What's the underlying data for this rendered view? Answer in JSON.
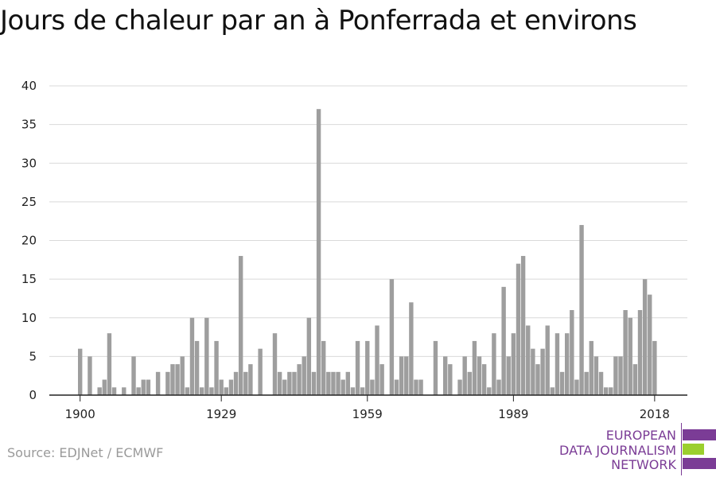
{
  "chart_data": {
    "type": "bar",
    "title": "Jours de chaleur par an à Ponferrada et environs",
    "xlabel": "",
    "ylabel": "",
    "ylim": [
      0,
      40
    ],
    "yticks": [
      0,
      5,
      10,
      15,
      20,
      25,
      30,
      35,
      40
    ],
    "xticks": [
      1900,
      1929,
      1959,
      1989,
      2018
    ],
    "grid": true,
    "bar_color": "#9e9e9e",
    "x": [
      1900,
      1901,
      1902,
      1903,
      1904,
      1905,
      1906,
      1907,
      1908,
      1909,
      1910,
      1911,
      1912,
      1913,
      1914,
      1915,
      1916,
      1917,
      1918,
      1919,
      1920,
      1921,
      1922,
      1923,
      1924,
      1925,
      1926,
      1927,
      1928,
      1929,
      1930,
      1931,
      1932,
      1933,
      1934,
      1935,
      1936,
      1937,
      1938,
      1939,
      1940,
      1941,
      1942,
      1943,
      1944,
      1945,
      1946,
      1947,
      1948,
      1949,
      1950,
      1951,
      1952,
      1953,
      1954,
      1955,
      1956,
      1957,
      1958,
      1959,
      1960,
      1961,
      1962,
      1963,
      1964,
      1965,
      1966,
      1967,
      1968,
      1969,
      1970,
      1971,
      1972,
      1973,
      1974,
      1975,
      1976,
      1977,
      1978,
      1979,
      1980,
      1981,
      1982,
      1983,
      1984,
      1985,
      1986,
      1987,
      1988,
      1989,
      1990,
      1991,
      1992,
      1993,
      1994,
      1995,
      1996,
      1997,
      1998,
      1999,
      2000,
      2001,
      2002,
      2003,
      2004,
      2005,
      2006,
      2007,
      2008,
      2009,
      2010,
      2011,
      2012,
      2013,
      2014,
      2015,
      2016,
      2017,
      2018
    ],
    "values": [
      6,
      0,
      5,
      0,
      1,
      2,
      8,
      1,
      0,
      1,
      0,
      5,
      1,
      2,
      2,
      0,
      3,
      0,
      3,
      4,
      4,
      5,
      1,
      10,
      7,
      1,
      10,
      1,
      7,
      2,
      1,
      2,
      3,
      18,
      3,
      4,
      0,
      6,
      0,
      0,
      8,
      3,
      2,
      3,
      3,
      4,
      5,
      10,
      3,
      37,
      7,
      3,
      3,
      3,
      2,
      3,
      1,
      7,
      1,
      7,
      2,
      9,
      4,
      0,
      15,
      2,
      5,
      5,
      12,
      2,
      2,
      0,
      0,
      7,
      0,
      5,
      4,
      0,
      2,
      5,
      3,
      7,
      5,
      4,
      1,
      8,
      2,
      14,
      5,
      8,
      17,
      18,
      9,
      6,
      4,
      6,
      9,
      1,
      8,
      3,
      8,
      11,
      2,
      22,
      3,
      7,
      5,
      3,
      1,
      1,
      5,
      5,
      11,
      10,
      4,
      11,
      15,
      13,
      7
    ]
  },
  "source": "Source: EDJNet / ECMWF",
  "logo": {
    "line1": "EUROPEAN",
    "line2": "DATA JOURNALISM",
    "line3": "NETWORK",
    "purple": "#7b3c96",
    "green": "#9bcf2e"
  }
}
